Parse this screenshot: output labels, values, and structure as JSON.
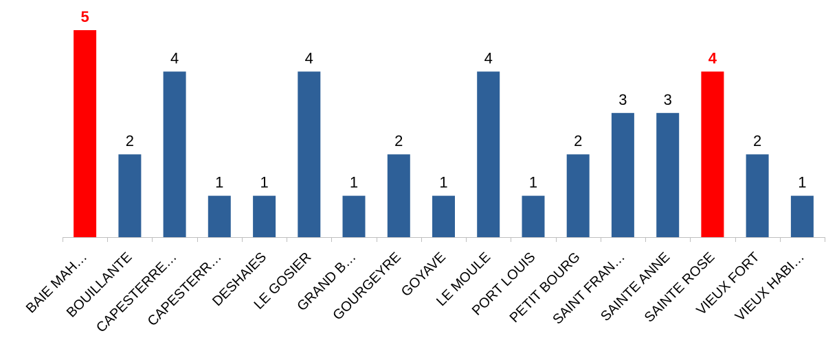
{
  "chart_data": {
    "type": "bar",
    "categories": [
      "BAIE MAH…",
      "BOUILLANTE",
      "CAPESTERRE…",
      "CAPESTERR…",
      "DESHAIES",
      "LE GOSIER",
      "GRAND B…",
      "GOURGEYRE",
      "GOYAVE",
      "LE MOULE",
      "PORT LOUIS",
      "PETIT BOURG",
      "SAINT FRAN…",
      "SAINTE ANNE",
      "SAINTE ROSE",
      "VIEUX FORT",
      "VIEUX HABI…"
    ],
    "values": [
      5,
      2,
      4,
      1,
      1,
      4,
      1,
      2,
      1,
      4,
      1,
      2,
      3,
      3,
      4,
      2,
      1
    ],
    "highlighted": [
      0,
      14
    ],
    "ylim": [
      0,
      5.5
    ],
    "grid": false,
    "legend": "none",
    "data_labels": true,
    "title": "",
    "xlabel": "",
    "ylabel": ""
  },
  "colors": {
    "bar": "#2E6098",
    "highlight": "#FF0000",
    "label": "#000000",
    "highlight_label": "#FF0000",
    "axis": "#BFBFBF"
  }
}
